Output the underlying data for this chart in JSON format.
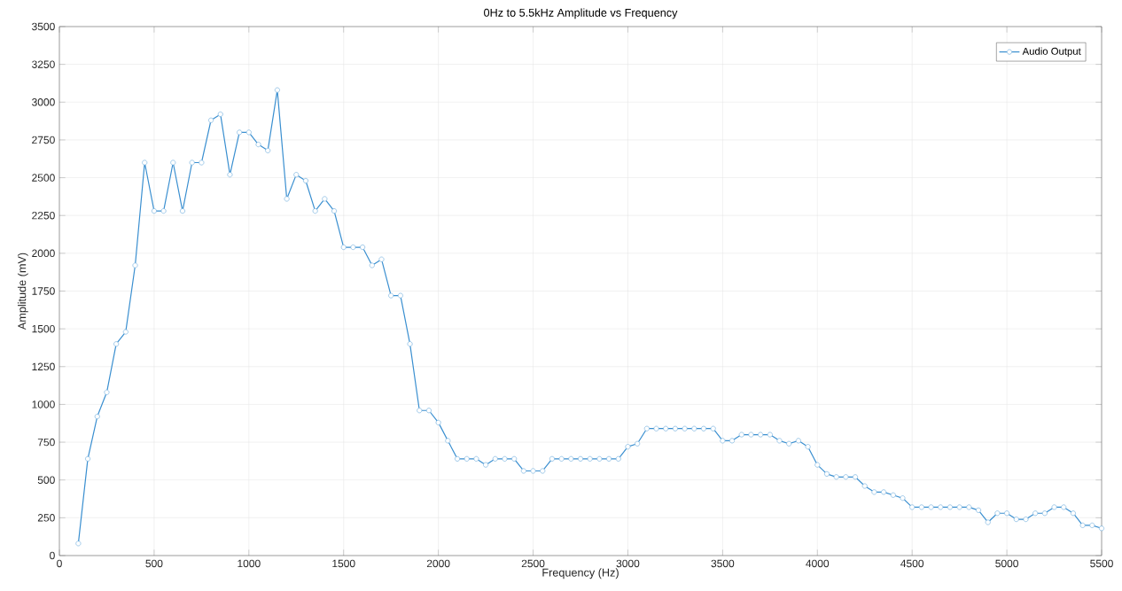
{
  "chart_data": {
    "type": "line",
    "title": "0Hz to 5.5kHz Amplitude vs Frequency",
    "xlabel": "Frequency (Hz)",
    "ylabel": "Amplitude (mV)",
    "x": [
      100,
      150,
      200,
      250,
      300,
      350,
      400,
      450,
      500,
      550,
      600,
      650,
      700,
      750,
      800,
      850,
      900,
      950,
      1000,
      1050,
      1100,
      1150,
      1200,
      1250,
      1300,
      1350,
      1400,
      1450,
      1500,
      1550,
      1600,
      1650,
      1700,
      1750,
      1800,
      1850,
      1900,
      1950,
      2000,
      2050,
      2100,
      2150,
      2200,
      2250,
      2300,
      2350,
      2400,
      2450,
      2500,
      2550,
      2600,
      2650,
      2700,
      2750,
      2800,
      2850,
      2900,
      2950,
      3000,
      3050,
      3100,
      3150,
      3200,
      3250,
      3300,
      3350,
      3400,
      3450,
      3500,
      3550,
      3600,
      3650,
      3700,
      3750,
      3800,
      3850,
      3900,
      3950,
      4000,
      4050,
      4100,
      4150,
      4200,
      4250,
      4300,
      4350,
      4400,
      4450,
      4500,
      4550,
      4600,
      4650,
      4700,
      4750,
      4800,
      4850,
      4900,
      4950,
      5000,
      5050,
      5100,
      5150,
      5200,
      5250,
      5300,
      5350,
      5400,
      5450,
      5500
    ],
    "series": [
      {
        "name": "Audio Output",
        "color": "#3a8fd0",
        "values": [
          80,
          640,
          920,
          1080,
          1400,
          1480,
          1920,
          2600,
          2280,
          2280,
          2600,
          2280,
          2600,
          2600,
          2880,
          2920,
          2520,
          2800,
          2800,
          2720,
          2680,
          3080,
          2360,
          2520,
          2480,
          2280,
          2360,
          2280,
          2040,
          2040,
          2040,
          1920,
          1960,
          1720,
          1720,
          1400,
          960,
          960,
          880,
          760,
          640,
          640,
          640,
          600,
          640,
          640,
          640,
          560,
          560,
          560,
          640,
          640,
          640,
          640,
          640,
          640,
          640,
          640,
          720,
          740,
          840,
          840,
          840,
          840,
          840,
          840,
          840,
          840,
          760,
          760,
          800,
          800,
          800,
          800,
          760,
          740,
          760,
          720,
          600,
          540,
          520,
          520,
          520,
          460,
          420,
          420,
          400,
          380,
          320,
          320,
          320,
          320,
          320,
          320,
          320,
          300,
          220,
          280,
          280,
          240,
          240,
          280,
          280,
          320,
          320,
          280,
          200,
          200,
          180
        ]
      }
    ],
    "xlim": [
      0,
      5500
    ],
    "ylim": [
      0,
      3500
    ],
    "xticks": [
      0,
      500,
      1000,
      1500,
      2000,
      2500,
      3000,
      3500,
      4000,
      4500,
      5000,
      5500
    ],
    "yticks": [
      0,
      250,
      500,
      750,
      1000,
      1250,
      1500,
      1750,
      2000,
      2250,
      2500,
      2750,
      3000,
      3250,
      3500
    ],
    "grid": true,
    "legend": "top right",
    "marker": "circle",
    "line_style": "solid"
  }
}
